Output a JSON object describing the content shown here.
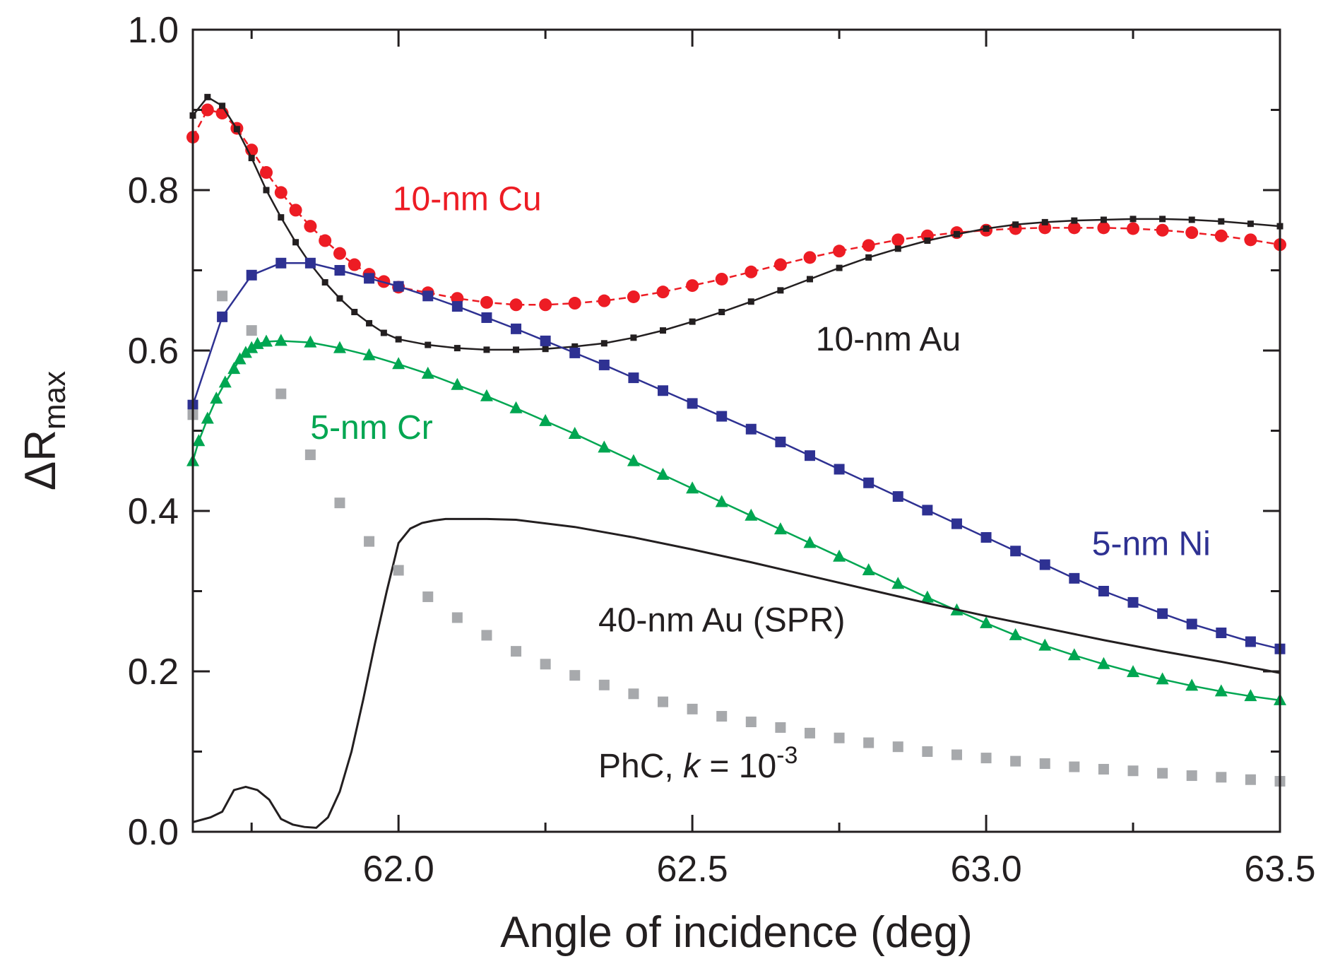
{
  "chart_data": {
    "type": "line",
    "title": "",
    "xlabel": "Angle of incidence (deg)",
    "ylabel": {
      "main": "ΔR",
      "sub": "max"
    },
    "xlim": [
      61.65,
      63.5
    ],
    "ylim": [
      0.0,
      1.0
    ],
    "x_ticks": [
      "62.0",
      "62.5",
      "63.0",
      "63.5"
    ],
    "y_ticks": [
      "0.0",
      "0.2",
      "0.4",
      "0.6",
      "0.8",
      "1.0"
    ],
    "grid": false,
    "series": [
      {
        "name": "10-nm Cu",
        "color": "#ed1c24",
        "marker": "circle",
        "line": "dashed",
        "label_position": [
          61.99,
          0.775
        ],
        "label_parts": [
          "10-nm Cu"
        ],
        "x": [
          61.65,
          61.675,
          61.7,
          61.725,
          61.75,
          61.775,
          61.8,
          61.825,
          61.85,
          61.875,
          61.9,
          61.925,
          61.95,
          61.975,
          62.0,
          62.05,
          62.1,
          62.15,
          62.2,
          62.25,
          62.3,
          62.35,
          62.4,
          62.45,
          62.5,
          62.55,
          62.6,
          62.65,
          62.7,
          62.75,
          62.8,
          62.85,
          62.9,
          62.95,
          63.0,
          63.05,
          63.1,
          63.15,
          63.2,
          63.25,
          63.3,
          63.35,
          63.4,
          63.45,
          63.5
        ],
        "y": [
          0.866,
          0.9,
          0.896,
          0.877,
          0.85,
          0.822,
          0.797,
          0.775,
          0.755,
          0.737,
          0.721,
          0.707,
          0.695,
          0.686,
          0.679,
          0.672,
          0.665,
          0.66,
          0.657,
          0.657,
          0.659,
          0.662,
          0.667,
          0.673,
          0.681,
          0.689,
          0.698,
          0.707,
          0.716,
          0.724,
          0.731,
          0.738,
          0.743,
          0.747,
          0.75,
          0.752,
          0.753,
          0.753,
          0.753,
          0.752,
          0.75,
          0.747,
          0.743,
          0.738,
          0.732
        ]
      },
      {
        "name": "10-nm Au",
        "color": "#231f20",
        "marker": "small-square",
        "line": "solid",
        "label_position": [
          62.71,
          0.6
        ],
        "label_parts": [
          "10-nm Au"
        ],
        "x": [
          61.65,
          61.675,
          61.7,
          61.725,
          61.75,
          61.775,
          61.8,
          61.825,
          61.85,
          61.875,
          61.9,
          61.925,
          61.95,
          61.975,
          62.0,
          62.05,
          62.1,
          62.15,
          62.2,
          62.25,
          62.3,
          62.35,
          62.4,
          62.45,
          62.5,
          62.55,
          62.6,
          62.65,
          62.7,
          62.75,
          62.8,
          62.85,
          62.9,
          62.95,
          63.0,
          63.05,
          63.1,
          63.15,
          63.2,
          63.25,
          63.3,
          63.35,
          63.4,
          63.45,
          63.5
        ],
        "y": [
          0.893,
          0.916,
          0.905,
          0.876,
          0.84,
          0.8,
          0.766,
          0.735,
          0.708,
          0.685,
          0.665,
          0.648,
          0.634,
          0.622,
          0.614,
          0.607,
          0.603,
          0.601,
          0.601,
          0.602,
          0.605,
          0.609,
          0.616,
          0.625,
          0.636,
          0.648,
          0.661,
          0.675,
          0.689,
          0.703,
          0.716,
          0.727,
          0.737,
          0.745,
          0.752,
          0.757,
          0.76,
          0.762,
          0.763,
          0.764,
          0.764,
          0.763,
          0.761,
          0.758,
          0.755
        ]
      },
      {
        "name": "5-nm Ni",
        "color": "#2e3192",
        "marker": "square",
        "line": "solid",
        "label_position": [
          63.18,
          0.345
        ],
        "label_parts": [
          "5-nm Ni"
        ],
        "x": [
          61.65,
          61.7,
          61.75,
          61.8,
          61.85,
          61.9,
          61.95,
          62.0,
          62.05,
          62.1,
          62.15,
          62.2,
          62.25,
          62.3,
          62.35,
          62.4,
          62.45,
          62.5,
          62.55,
          62.6,
          62.65,
          62.7,
          62.75,
          62.8,
          62.85,
          62.9,
          62.95,
          63.0,
          63.05,
          63.1,
          63.15,
          63.2,
          63.25,
          63.3,
          63.35,
          63.4,
          63.45,
          63.5
        ],
        "y": [
          0.532,
          0.642,
          0.694,
          0.709,
          0.709,
          0.7,
          0.69,
          0.68,
          0.668,
          0.655,
          0.641,
          0.627,
          0.612,
          0.597,
          0.582,
          0.566,
          0.55,
          0.534,
          0.518,
          0.502,
          0.486,
          0.469,
          0.452,
          0.435,
          0.418,
          0.401,
          0.384,
          0.367,
          0.35,
          0.333,
          0.316,
          0.3,
          0.286,
          0.272,
          0.259,
          0.248,
          0.237,
          0.228
        ]
      },
      {
        "name": "5-nm Cr",
        "color": "#00a651",
        "marker": "triangle",
        "line": "solid",
        "label_position": [
          61.85,
          0.49
        ],
        "label_parts": [
          "5-nm Cr"
        ],
        "x": [
          61.65,
          61.66,
          61.675,
          61.69,
          61.705,
          61.72,
          61.73,
          61.74,
          61.75,
          61.76,
          61.775,
          61.8,
          61.85,
          61.9,
          61.95,
          62.0,
          62.05,
          62.1,
          62.15,
          62.2,
          62.25,
          62.3,
          62.35,
          62.4,
          62.45,
          62.5,
          62.55,
          62.6,
          62.65,
          62.7,
          62.75,
          62.8,
          62.85,
          62.9,
          62.95,
          63.0,
          63.05,
          63.1,
          63.15,
          63.2,
          63.25,
          63.3,
          63.35,
          63.4,
          63.45,
          63.5
        ],
        "y": [
          0.462,
          0.487,
          0.515,
          0.54,
          0.56,
          0.577,
          0.589,
          0.597,
          0.603,
          0.608,
          0.611,
          0.612,
          0.61,
          0.603,
          0.594,
          0.583,
          0.571,
          0.557,
          0.543,
          0.528,
          0.512,
          0.496,
          0.479,
          0.462,
          0.445,
          0.428,
          0.411,
          0.394,
          0.377,
          0.36,
          0.343,
          0.326,
          0.309,
          0.292,
          0.276,
          0.26,
          0.245,
          0.232,
          0.22,
          0.209,
          0.199,
          0.19,
          0.182,
          0.175,
          0.169,
          0.164
        ]
      },
      {
        "name": "40-nm Au (SPR)",
        "color": "#231f20",
        "marker": "none",
        "line": "solid",
        "label_position": [
          62.34,
          0.25
        ],
        "label_parts": [
          "40-nm Au (SPR)"
        ],
        "x": [
          61.65,
          61.68,
          61.7,
          61.72,
          61.74,
          61.76,
          61.78,
          61.8,
          61.82,
          61.84,
          61.86,
          61.88,
          61.9,
          61.92,
          61.94,
          61.96,
          61.98,
          62.0,
          62.02,
          62.04,
          62.06,
          62.08,
          62.1,
          62.15,
          62.2,
          62.3,
          62.4,
          62.5,
          62.6,
          62.7,
          62.8,
          62.9,
          63.0,
          63.1,
          63.2,
          63.3,
          63.4,
          63.5
        ],
        "y": [
          0.012,
          0.018,
          0.025,
          0.052,
          0.056,
          0.052,
          0.04,
          0.016,
          0.009,
          0.006,
          0.005,
          0.018,
          0.05,
          0.1,
          0.165,
          0.235,
          0.3,
          0.36,
          0.378,
          0.385,
          0.388,
          0.39,
          0.39,
          0.39,
          0.389,
          0.38,
          0.367,
          0.352,
          0.336,
          0.319,
          0.302,
          0.285,
          0.269,
          0.254,
          0.239,
          0.225,
          0.212,
          0.198
        ]
      },
      {
        "name": "PhC, k = 10-3",
        "color": "#a7a9ac",
        "marker": "square",
        "line": "none",
        "label_position": [
          62.34,
          0.068
        ],
        "label_parts": [
          "PhC, ",
          "k",
          " = 10",
          "-3"
        ],
        "x": [
          61.65,
          61.7,
          61.75,
          61.8,
          61.85,
          61.9,
          61.95,
          62.0,
          62.05,
          62.1,
          62.15,
          62.2,
          62.25,
          62.3,
          62.35,
          62.4,
          62.45,
          62.5,
          62.55,
          62.6,
          62.65,
          62.7,
          62.75,
          62.8,
          62.85,
          62.9,
          62.95,
          63.0,
          63.05,
          63.1,
          63.15,
          63.2,
          63.25,
          63.3,
          63.35,
          63.4,
          63.45,
          63.5
        ],
        "y": [
          0.52,
          0.668,
          0.625,
          0.546,
          0.47,
          0.41,
          0.362,
          0.326,
          0.293,
          0.267,
          0.245,
          0.225,
          0.209,
          0.195,
          0.183,
          0.172,
          0.162,
          0.153,
          0.144,
          0.137,
          0.13,
          0.123,
          0.117,
          0.111,
          0.106,
          0.1,
          0.096,
          0.092,
          0.088,
          0.085,
          0.081,
          0.078,
          0.076,
          0.073,
          0.07,
          0.068,
          0.065,
          0.063
        ]
      }
    ]
  }
}
